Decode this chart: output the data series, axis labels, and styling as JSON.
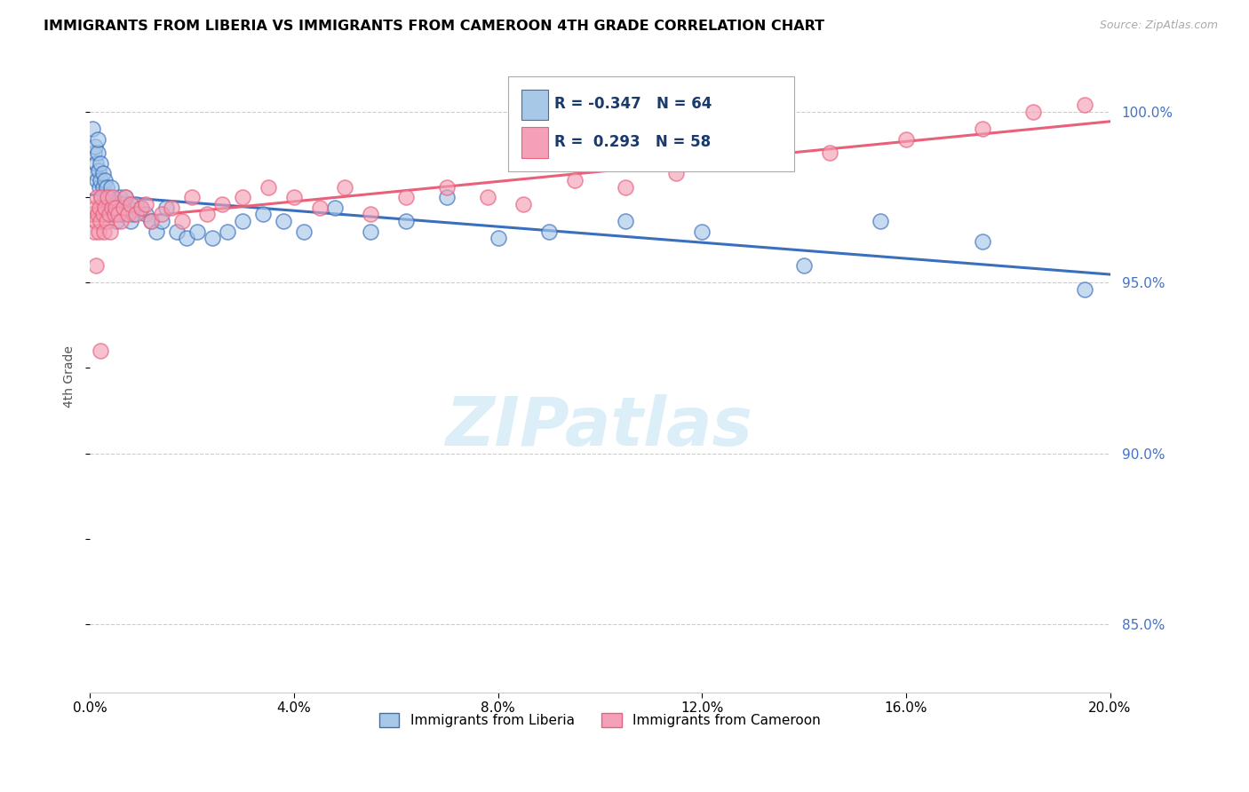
{
  "title": "IMMIGRANTS FROM LIBERIA VS IMMIGRANTS FROM CAMEROON 4TH GRADE CORRELATION CHART",
  "source": "Source: ZipAtlas.com",
  "ylabel": "4th Grade",
  "legend_label1": "Immigrants from Liberia",
  "legend_label2": "Immigrants from Cameroon",
  "R1": -0.347,
  "N1": 64,
  "R2": 0.293,
  "N2": 58,
  "color1": "#a8c8e8",
  "color2": "#f4a0b8",
  "trendline_color1": "#3a6fbd",
  "trendline_color2": "#e8607a",
  "xlim": [
    0.0,
    20.0
  ],
  "ylim": [
    83.0,
    101.5
  ],
  "yticks": [
    85.0,
    90.0,
    95.0,
    100.0
  ],
  "xticks": [
    0.0,
    4.0,
    8.0,
    12.0,
    16.0,
    20.0
  ],
  "liberia_x": [
    0.05,
    0.08,
    0.1,
    0.1,
    0.12,
    0.13,
    0.15,
    0.15,
    0.17,
    0.18,
    0.2,
    0.2,
    0.22,
    0.25,
    0.25,
    0.28,
    0.3,
    0.3,
    0.32,
    0.33,
    0.35,
    0.38,
    0.4,
    0.42,
    0.45,
    0.48,
    0.5,
    0.52,
    0.55,
    0.58,
    0.6,
    0.65,
    0.7,
    0.75,
    0.8,
    0.85,
    0.9,
    1.0,
    1.1,
    1.2,
    1.3,
    1.4,
    1.5,
    1.7,
    1.9,
    2.1,
    2.4,
    2.7,
    3.0,
    3.4,
    3.8,
    4.2,
    4.8,
    5.5,
    6.2,
    7.0,
    8.0,
    9.0,
    10.5,
    12.0,
    14.0,
    15.5,
    17.5,
    19.5
  ],
  "liberia_y": [
    99.5,
    98.8,
    98.2,
    99.0,
    98.5,
    98.0,
    98.8,
    99.2,
    98.3,
    97.8,
    98.0,
    98.5,
    97.5,
    97.8,
    98.2,
    97.2,
    97.5,
    98.0,
    97.3,
    97.8,
    97.0,
    97.5,
    97.2,
    97.8,
    97.0,
    97.3,
    97.0,
    96.8,
    97.2,
    97.5,
    97.0,
    97.3,
    97.5,
    97.2,
    96.8,
    97.0,
    97.3,
    97.2,
    97.0,
    96.8,
    96.5,
    96.8,
    97.2,
    96.5,
    96.3,
    96.5,
    96.3,
    96.5,
    96.8,
    97.0,
    96.8,
    96.5,
    97.2,
    96.5,
    96.8,
    97.5,
    96.3,
    96.5,
    96.8,
    96.5,
    95.5,
    96.8,
    96.2,
    94.8
  ],
  "cameroon_x": [
    0.05,
    0.08,
    0.1,
    0.12,
    0.13,
    0.15,
    0.17,
    0.18,
    0.2,
    0.22,
    0.25,
    0.28,
    0.3,
    0.33,
    0.35,
    0.38,
    0.4,
    0.43,
    0.45,
    0.48,
    0.5,
    0.55,
    0.6,
    0.65,
    0.7,
    0.75,
    0.8,
    0.9,
    1.0,
    1.1,
    1.2,
    1.4,
    1.6,
    1.8,
    2.0,
    2.3,
    2.6,
    3.0,
    3.5,
    4.0,
    4.5,
    5.0,
    5.5,
    6.2,
    7.0,
    7.8,
    8.5,
    9.5,
    10.5,
    11.5,
    13.0,
    14.5,
    16.0,
    17.5,
    18.5,
    19.5,
    0.2,
    0.12
  ],
  "cameroon_y": [
    97.0,
    96.5,
    97.2,
    96.8,
    97.5,
    97.0,
    96.5,
    97.2,
    96.8,
    97.5,
    97.0,
    96.5,
    97.2,
    96.8,
    97.5,
    97.0,
    96.5,
    97.2,
    97.5,
    97.0,
    97.2,
    97.0,
    96.8,
    97.2,
    97.5,
    97.0,
    97.3,
    97.0,
    97.2,
    97.3,
    96.8,
    97.0,
    97.2,
    96.8,
    97.5,
    97.0,
    97.3,
    97.5,
    97.8,
    97.5,
    97.2,
    97.8,
    97.0,
    97.5,
    97.8,
    97.5,
    97.3,
    98.0,
    97.8,
    98.2,
    98.5,
    98.8,
    99.2,
    99.5,
    100.0,
    100.2,
    93.0,
    95.5
  ],
  "watermark_text": "ZIPatlas",
  "watermark_color": "#dceef8"
}
